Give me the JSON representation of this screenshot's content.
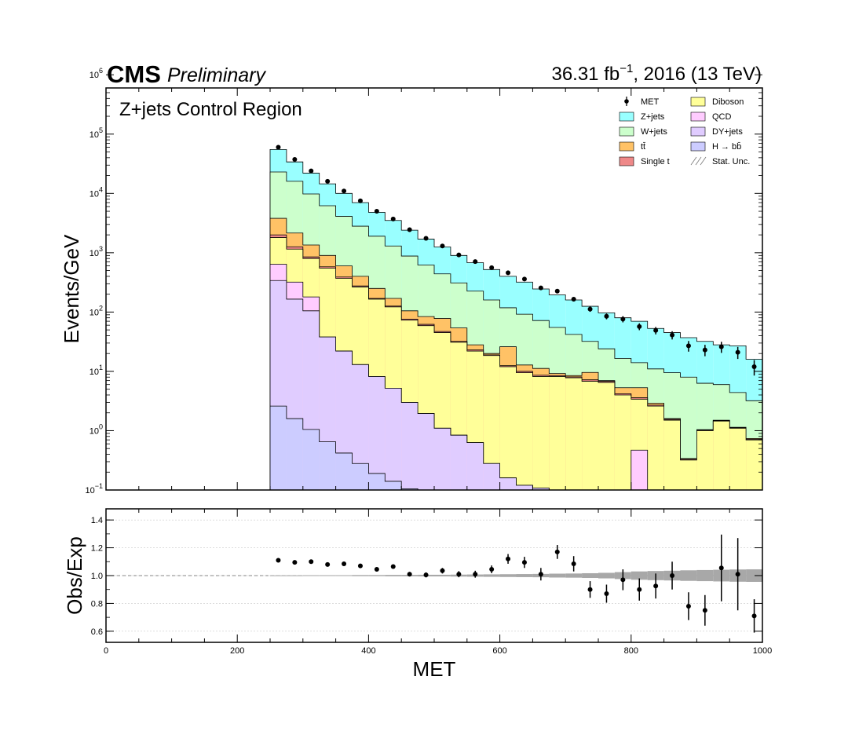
{
  "header": {
    "experiment": "CMS",
    "status": "Preliminary",
    "luminosity_label": "36.31 fb",
    "luminosity_exp": "−1",
    "energy_label": ", 2016 (13 TeV)",
    "region_label": "Z+jets Control Region"
  },
  "chart_data": [
    {
      "type": "bar",
      "subtype": "stacked-histogram",
      "ylabel": "Events/GeV",
      "xlabel": "",
      "log_y": true,
      "xlim": [
        0,
        1000
      ],
      "ylim": [
        0.1,
        600000
      ],
      "y_ticks": [
        {
          "value": 0.1,
          "base": "10",
          "exp": "−1"
        },
        {
          "value": 1,
          "base": "10",
          "exp": "0"
        },
        {
          "value": 10,
          "base": "10",
          "exp": "1"
        },
        {
          "value": 100,
          "base": "10",
          "exp": "2"
        },
        {
          "value": 1000,
          "base": "10",
          "exp": "3"
        },
        {
          "value": 10000,
          "base": "10",
          "exp": "4"
        },
        {
          "value": 100000,
          "base": "10",
          "exp": "5"
        },
        {
          "value": 1000000,
          "base": "10",
          "exp": "6"
        }
      ],
      "bin_edges": [
        250,
        275,
        300,
        325,
        350,
        375,
        400,
        425,
        450,
        475,
        500,
        525,
        550,
        575,
        600,
        625,
        650,
        675,
        700,
        725,
        750,
        775,
        800,
        825,
        850,
        875,
        900,
        925,
        950,
        975,
        1000
      ],
      "cumulative_stack": [
        {
          "name": "H→bb̄",
          "legend": "H → bb̄",
          "color": "#ccccff",
          "values": [
            2.6,
            1.6,
            1.05,
            0.65,
            0.42,
            0.28,
            0.19,
            0.14,
            0.105,
            0.1,
            0.1,
            0.1,
            0.1,
            0.1,
            0.1,
            0.1,
            0.1,
            0.1,
            0.1,
            0.1,
            0.1,
            0.1,
            0.1,
            0.1,
            0.1,
            0.1,
            0.1,
            0.1,
            0.1,
            0.1
          ]
        },
        {
          "name": "DY+jets",
          "legend": "DY+jets",
          "color": "#e0ccff",
          "values": [
            340,
            165,
            105,
            38,
            22,
            13,
            8.2,
            5.2,
            3.0,
            1.95,
            1.1,
            0.84,
            0.63,
            0.28,
            0.16,
            0.12,
            0.108,
            0.1,
            0.1,
            0.1,
            0.1,
            0.1,
            0.1,
            0.1,
            0.1,
            0.1,
            0.1,
            0.1,
            0.1,
            0.1
          ]
        },
        {
          "name": "QCD",
          "legend": "QCD",
          "color": "#ffccff",
          "values": [
            640,
            320,
            180,
            38,
            22,
            13,
            8.2,
            5.2,
            3.0,
            1.95,
            1.1,
            0.84,
            0.63,
            0.28,
            0.16,
            0.12,
            0.108,
            0.1,
            0.1,
            0.1,
            0.1,
            0.1,
            0.47,
            0.1,
            0.1,
            0.1,
            0.1,
            0.1,
            0.1,
            0.1
          ]
        },
        {
          "name": "Diboson",
          "legend": "Diboson",
          "color": "#ffff99",
          "values": [
            1800,
            1150,
            800,
            550,
            370,
            265,
            165,
            122,
            73,
            59,
            45,
            31,
            22,
            18.5,
            12,
            9.5,
            8.2,
            8.2,
            7.8,
            6.8,
            6.5,
            4,
            3.4,
            2.6,
            1.5,
            0.32,
            1.0,
            1.45,
            1.1,
            0.7
          ]
        },
        {
          "name": "Single t",
          "legend": "Single t",
          "color": "#ee8888",
          "values": [
            2000,
            1260,
            850,
            580,
            390,
            275,
            170,
            126,
            76,
            62,
            47,
            32,
            23,
            19,
            12.5,
            10,
            8.6,
            8.5,
            8.1,
            7.2,
            6.8,
            4.2,
            3.6,
            2.7,
            1.55,
            0.33,
            1.02,
            1.48,
            1.12,
            0.72
          ]
        },
        {
          "name": "tt̄",
          "legend": "tt̄",
          "color": "#ffc266",
          "values": [
            3800,
            2150,
            1350,
            900,
            600,
            400,
            250,
            170,
            105,
            84,
            78,
            54,
            28,
            20,
            26,
            12.8,
            11.2,
            9.2,
            8.5,
            9.6,
            7.0,
            5.3,
            5.3,
            2.9,
            1.6,
            0.34,
            1.04,
            1.5,
            1.14,
            0.74
          ]
        },
        {
          "name": "W+jets",
          "legend": "W+jets",
          "color": "#ccffcc",
          "values": [
            23000,
            16000,
            9800,
            6200,
            4100,
            2800,
            1900,
            1300,
            880,
            620,
            440,
            310,
            225,
            160,
            118,
            92,
            72,
            55,
            42,
            32,
            24,
            16.5,
            14,
            11,
            9.5,
            8.0,
            6.3,
            6.0,
            4.4,
            3.2
          ]
        },
        {
          "name": "Z+jets",
          "legend": "Z+jets",
          "color": "#99ffff",
          "values": [
            55000,
            34000,
            22000,
            14500,
            10000,
            7000,
            4800,
            3500,
            2400,
            1700,
            1250,
            900,
            680,
            520,
            400,
            320,
            245,
            195,
            160,
            125,
            97,
            80,
            70,
            53,
            45,
            37,
            32,
            28,
            27,
            16
          ]
        }
      ],
      "stat_unc_legend": "Stat. Unc.",
      "data_series": {
        "name": "MET",
        "legend": "MET",
        "x": [
          262.5,
          287.5,
          312.5,
          337.5,
          362.5,
          387.5,
          412.5,
          437.5,
          462.5,
          487.5,
          512.5,
          537.5,
          562.5,
          587.5,
          612.5,
          637.5,
          662.5,
          687.5,
          712.5,
          737.5,
          762.5,
          787.5,
          812.5,
          837.5,
          862.5,
          887.5,
          912.5,
          937.5,
          962.5,
          987.5
        ],
        "y": [
          60000,
          37500,
          24000,
          16000,
          11000,
          7500,
          5000,
          3700,
          2450,
          1750,
          1300,
          920,
          710,
          560,
          460,
          360,
          255,
          225,
          165,
          112,
          85,
          76,
          57,
          49,
          41,
          27,
          23,
          26,
          21,
          12
        ],
        "yerr_lo": [
          250,
          190,
          155,
          125,
          105,
          85,
          70,
          60,
          50,
          42,
          36,
          30,
          27,
          24,
          21,
          19,
          16,
          15,
          13,
          11,
          9.5,
          9,
          7.5,
          7,
          6.5,
          5.5,
          5,
          5.5,
          4.8,
          3.5
        ],
        "yerr_hi": [
          250,
          190,
          155,
          125,
          105,
          85,
          70,
          60,
          50,
          42,
          36,
          30,
          27,
          24,
          21,
          19,
          16,
          15,
          13,
          11,
          9.5,
          9,
          7.5,
          7,
          6.5,
          5.5,
          5,
          5.5,
          4.8,
          3.5
        ]
      }
    },
    {
      "type": "scatter",
      "subtype": "ratio-panel",
      "ylabel": "Obs/Exp",
      "xlabel": "MET",
      "xlim": [
        0,
        1000
      ],
      "ylim": [
        0.52,
        1.48
      ],
      "y_ticks": [
        "0.6",
        "0.8",
        "1.0",
        "1.2",
        "1.4"
      ],
      "x_ticks": [
        "0",
        "200",
        "400",
        "600",
        "800",
        "1000"
      ],
      "grid": true,
      "reference_line": 1.0,
      "ratio": {
        "x": [
          262.5,
          287.5,
          312.5,
          337.5,
          362.5,
          387.5,
          412.5,
          437.5,
          462.5,
          487.5,
          512.5,
          537.5,
          562.5,
          587.5,
          612.5,
          637.5,
          662.5,
          687.5,
          712.5,
          737.5,
          762.5,
          787.5,
          812.5,
          837.5,
          862.5,
          887.5,
          912.5,
          937.5,
          962.5,
          987.5
        ],
        "y": [
          1.11,
          1.095,
          1.1,
          1.08,
          1.085,
          1.07,
          1.045,
          1.065,
          1.01,
          1.005,
          1.035,
          1.01,
          1.01,
          1.045,
          1.12,
          1.095,
          1.01,
          1.17,
          1.085,
          0.9,
          0.87,
          0.97,
          0.9,
          0.925,
          1.0,
          0.78,
          0.75,
          1.055,
          1.01,
          0.71
        ],
        "err": [
          0.005,
          0.006,
          0.007,
          0.008,
          0.009,
          0.01,
          0.012,
          0.014,
          0.016,
          0.018,
          0.02,
          0.022,
          0.025,
          0.028,
          0.035,
          0.04,
          0.045,
          0.05,
          0.055,
          0.06,
          0.065,
          0.075,
          0.08,
          0.09,
          0.1,
          0.1,
          0.11,
          0.24,
          0.26,
          0.12
        ]
      },
      "stat_unc_band": [
        0.002,
        0.002,
        0.003,
        0.003,
        0.003,
        0.004,
        0.004,
        0.005,
        0.005,
        0.006,
        0.006,
        0.007,
        0.008,
        0.009,
        0.01,
        0.011,
        0.012,
        0.014,
        0.015,
        0.017,
        0.02,
        0.025,
        0.03,
        0.033,
        0.035,
        0.038,
        0.04,
        0.042,
        0.044,
        0.045
      ]
    }
  ]
}
